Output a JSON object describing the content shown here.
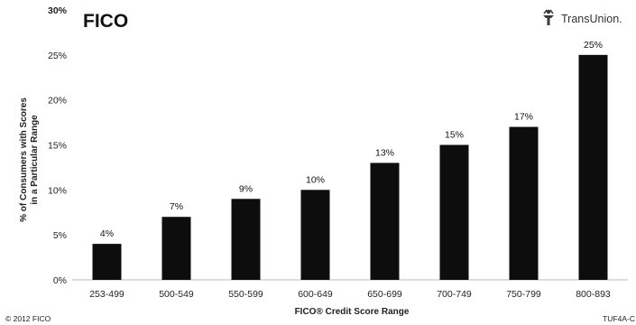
{
  "logos": {
    "fico": "FICO",
    "transunion": "TransUnion."
  },
  "footer": {
    "copyright": "© 2012 FICO",
    "code": "TUF4A-C"
  },
  "colors": {
    "bar": "#0d0d0d",
    "gridline": "#d8d8d8",
    "transunion_icon": "#3a3a3a"
  },
  "chart_data": {
    "type": "bar",
    "title": "",
    "xlabel": "FICO® Credit Score Range",
    "ylabel_lines": [
      "% of Consumers with Scores",
      "in a Particular Range"
    ],
    "categories": [
      "253-499",
      "500-549",
      "550-599",
      "600-649",
      "650-699",
      "700-749",
      "750-799",
      "800-893"
    ],
    "values": [
      4,
      7,
      9,
      10,
      13,
      15,
      17,
      25
    ],
    "data_labels": [
      "4%",
      "7%",
      "9%",
      "10%",
      "13%",
      "15%",
      "17%",
      "25%"
    ],
    "ylim": [
      0,
      30
    ],
    "yticks": [
      0,
      5,
      10,
      15,
      20,
      25,
      30
    ],
    "ytick_labels": [
      "0%",
      "5%",
      "10%",
      "15%",
      "20%",
      "25%",
      "30%"
    ],
    "grid": false,
    "legend": "none"
  }
}
